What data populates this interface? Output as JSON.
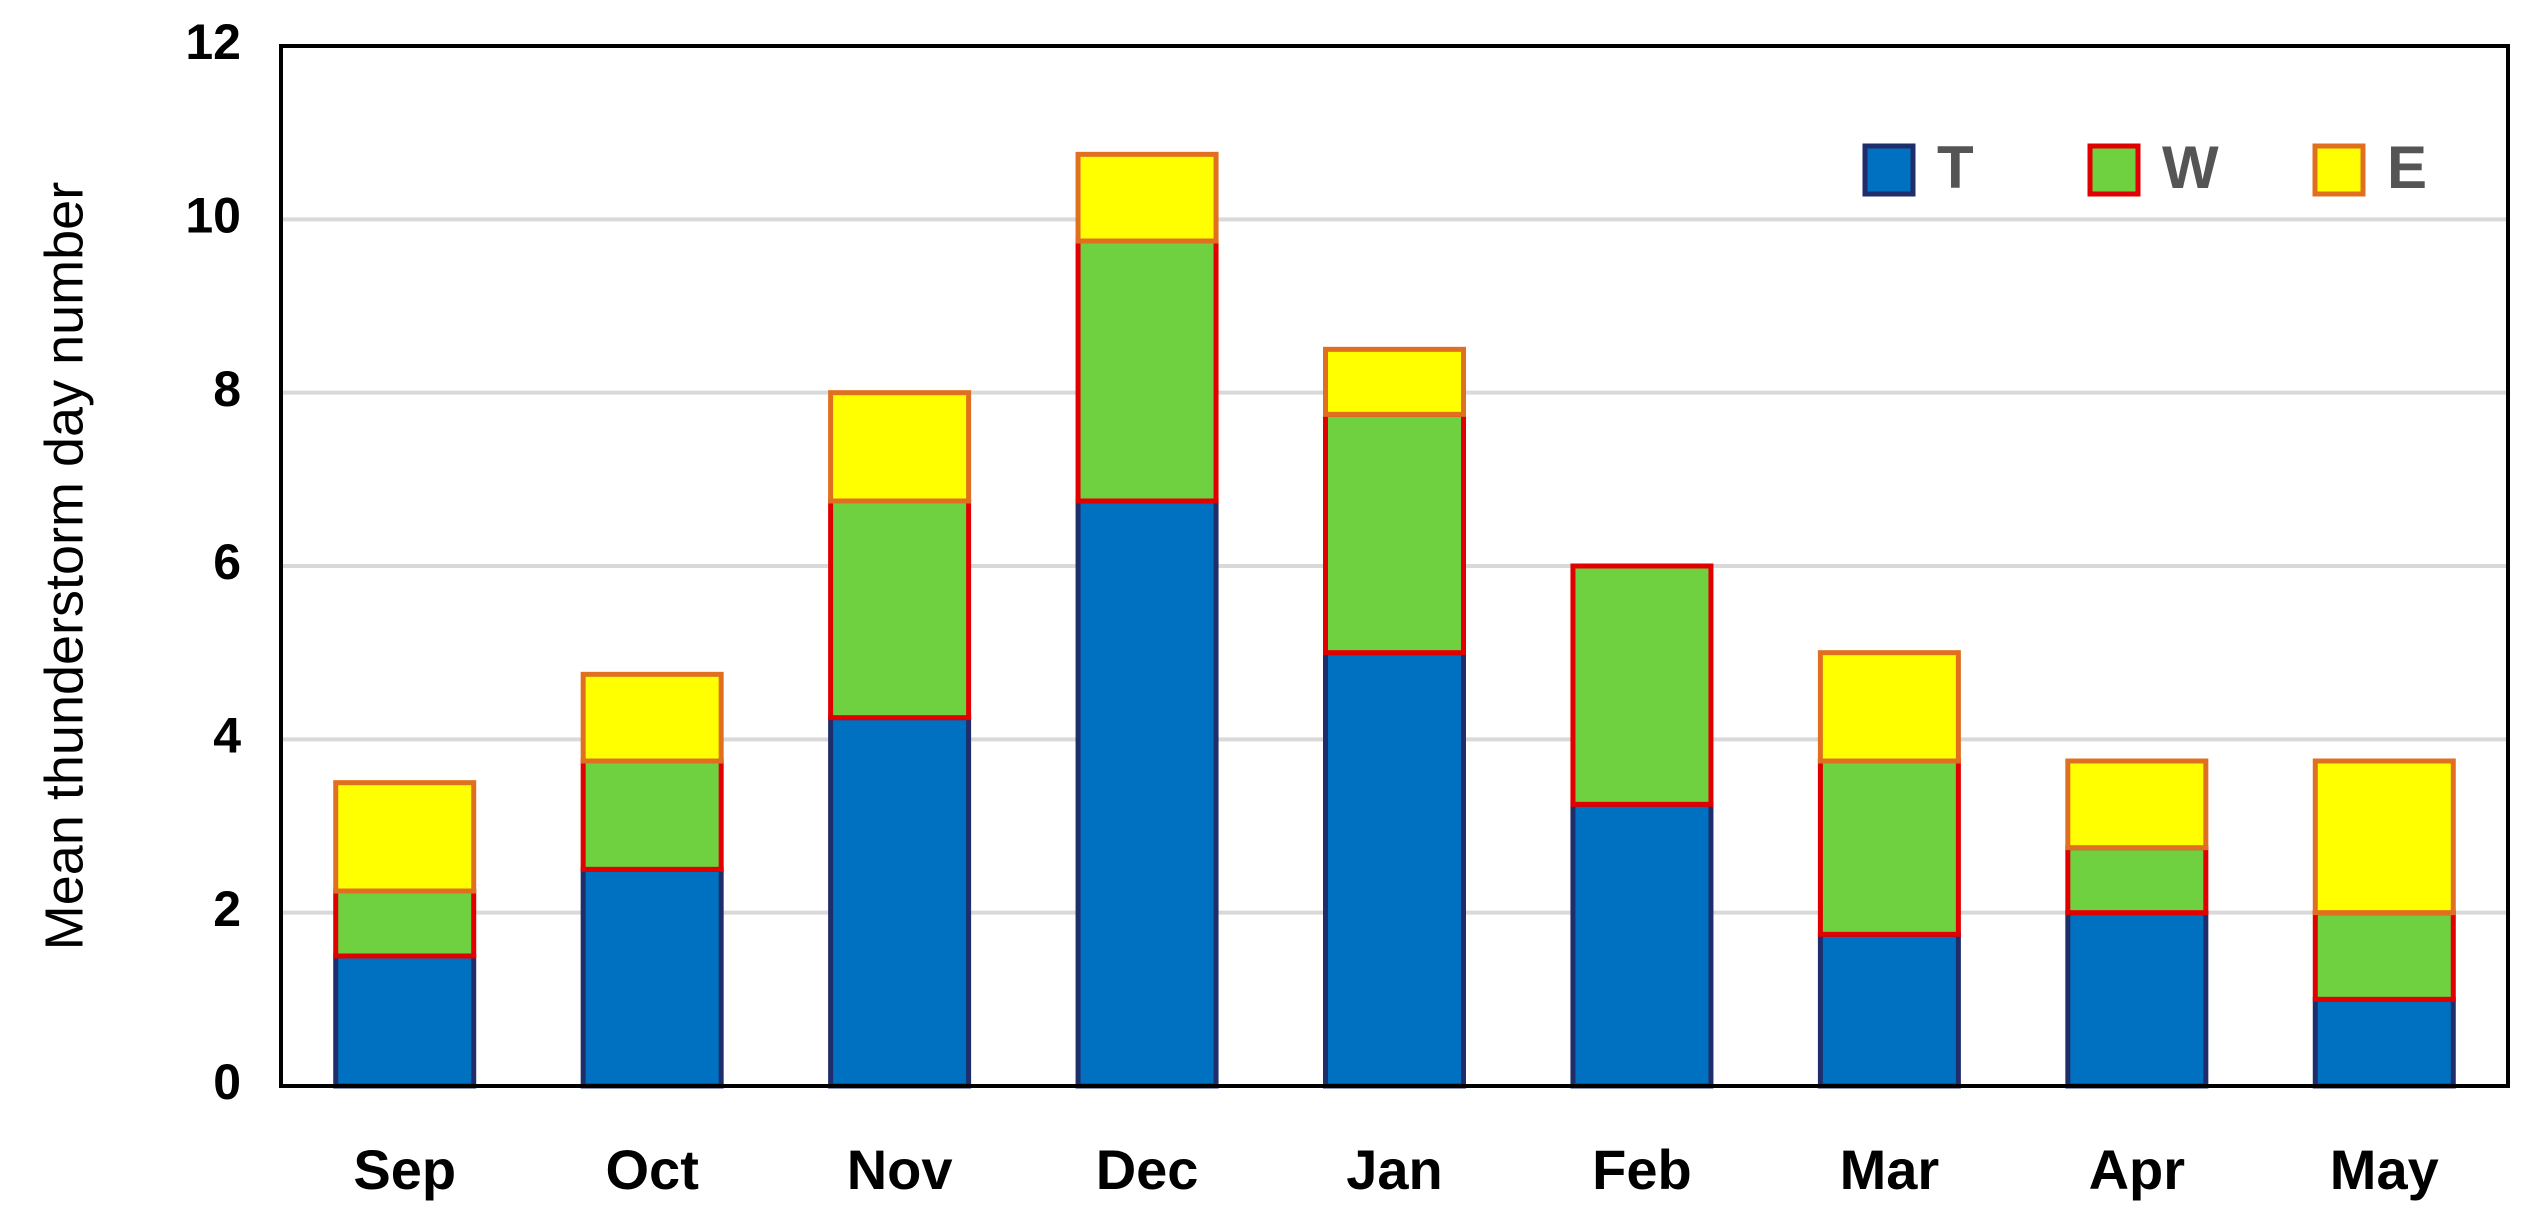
{
  "chart_data": {
    "type": "stacked_bar",
    "ylabel": "Mean thunderstorm day number",
    "categories": [
      "Sep",
      "Oct",
      "Nov",
      "Dec",
      "Jan",
      "Feb",
      "Mar",
      "Apr",
      "May"
    ],
    "series": [
      {
        "name": "T",
        "color": "#0070c0",
        "edgecolor": "#1f2d6b",
        "values": [
          1.5,
          2.5,
          4.25,
          6.75,
          5.0,
          3.25,
          1.75,
          2.0,
          1.0
        ]
      },
      {
        "name": "W",
        "color": "#6fd140",
        "edgecolor": "#e00000",
        "values": [
          0.75,
          1.25,
          2.5,
          3.0,
          2.75,
          2.75,
          2.0,
          0.75,
          1.0
        ]
      },
      {
        "name": "E",
        "color": "#ffff00",
        "edgecolor": "#e07020",
        "values": [
          1.25,
          1.0,
          1.25,
          1.0,
          0.75,
          0,
          1.25,
          1.0,
          1.75
        ]
      }
    ],
    "ylim": [
      0,
      12
    ],
    "yticks": [
      0,
      2,
      4,
      6,
      8,
      10,
      12
    ],
    "grid": true,
    "legend": "upper right"
  }
}
